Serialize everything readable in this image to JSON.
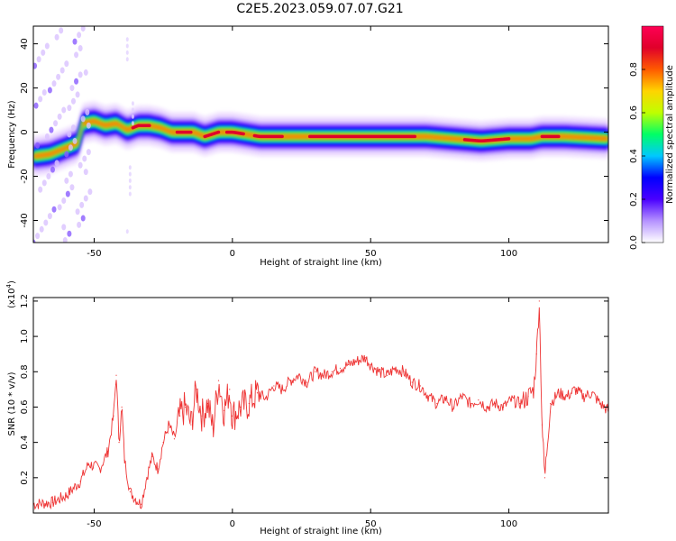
{
  "title": "C2E5.2023.059.07.07.G21",
  "chart_data": [
    {
      "type": "heatmap",
      "xlabel": "Height of straight line (km)",
      "ylabel": "Frequency (Hz)",
      "xlim": [
        -72,
        136
      ],
      "ylim": [
        -50,
        48
      ],
      "x_ticks": [
        -50,
        0,
        50,
        100
      ],
      "y_ticks": [
        -40,
        -20,
        0,
        20,
        40
      ],
      "ridge": {
        "x": [
          -72,
          -66,
          -60,
          -56,
          -54,
          -50,
          -46,
          -42,
          -38,
          -34,
          -30,
          -26,
          -22,
          -18,
          -14,
          -10,
          -5,
          0,
          5,
          10,
          20,
          30,
          50,
          70,
          80,
          90,
          100,
          108,
          112,
          120,
          136
        ],
        "y": [
          -11,
          -10,
          -7,
          -5,
          4,
          5,
          3,
          4,
          1,
          3,
          3,
          2,
          0,
          0,
          0,
          -2,
          0,
          0,
          -1,
          -2,
          -2,
          -2,
          -2,
          -2,
          -3,
          -4,
          -3,
          -3,
          -2,
          -2,
          -3
        ]
      },
      "colorbar": {
        "label": "Normalized spectral amplitude",
        "range": [
          0,
          1
        ],
        "ticks": [
          "0.0",
          "0.2",
          "0.4",
          "0.6",
          "0.8"
        ],
        "colors": [
          "#ffffff",
          "#b592ff",
          "#4a00ff",
          "#0000ff",
          "#00c8ff",
          "#00ff66",
          "#bfff00",
          "#ffd400",
          "#ff5a00",
          "#e0002a",
          "#ff0055"
        ]
      },
      "grid": false
    },
    {
      "type": "line",
      "xlabel": "Height of straight line (km)",
      "ylabel": "SNR (10 * v/v)",
      "y_multiplier": "(x10",
      "y_multiplier_exp": "4",
      "y_multiplier_close": ")",
      "xlim": [
        -72,
        136
      ],
      "ylim": [
        0.0,
        1.22
      ],
      "x_ticks": [
        -50,
        0,
        50,
        100
      ],
      "y_ticks": [
        "0.2",
        "0.4",
        "0.6",
        "0.8",
        "1.0",
        "1.2"
      ],
      "series": [
        {
          "color": "#ee3333",
          "x": [
            -72,
            -65,
            -60,
            -55,
            -52,
            -48,
            -45,
            -43,
            -42,
            -41,
            -40,
            -39,
            -37,
            -35,
            -33,
            -31,
            -29,
            -27,
            -25,
            -23,
            -21,
            -19,
            -17,
            -15,
            -13,
            -11,
            -9,
            -7,
            -5,
            -3,
            -1,
            0,
            3,
            6,
            9,
            12,
            15,
            18,
            21,
            24,
            27,
            30,
            33,
            36,
            39,
            42,
            45,
            48,
            50,
            53,
            56,
            59,
            62,
            65,
            68,
            71,
            74,
            77,
            80,
            83,
            86,
            89,
            92,
            95,
            98,
            101,
            104,
            107,
            109,
            110,
            111,
            112,
            113,
            115,
            118,
            121,
            124,
            127,
            130,
            133,
            136
          ],
          "y": [
            0.05,
            0.06,
            0.1,
            0.18,
            0.28,
            0.25,
            0.35,
            0.55,
            0.78,
            0.4,
            0.6,
            0.3,
            0.12,
            0.08,
            0.05,
            0.2,
            0.32,
            0.25,
            0.4,
            0.5,
            0.42,
            0.55,
            0.6,
            0.5,
            0.7,
            0.55,
            0.62,
            0.48,
            0.75,
            0.58,
            0.7,
            0.55,
            0.6,
            0.62,
            0.68,
            0.65,
            0.72,
            0.7,
            0.75,
            0.78,
            0.74,
            0.8,
            0.78,
            0.8,
            0.82,
            0.84,
            0.86,
            0.88,
            0.84,
            0.8,
            0.78,
            0.82,
            0.8,
            0.74,
            0.72,
            0.66,
            0.62,
            0.65,
            0.6,
            0.66,
            0.62,
            0.64,
            0.6,
            0.62,
            0.6,
            0.64,
            0.62,
            0.66,
            0.7,
            0.9,
            1.2,
            0.5,
            0.2,
            0.62,
            0.68,
            0.66,
            0.7,
            0.66,
            0.68,
            0.62,
            0.58
          ]
        }
      ],
      "grid": false
    }
  ]
}
